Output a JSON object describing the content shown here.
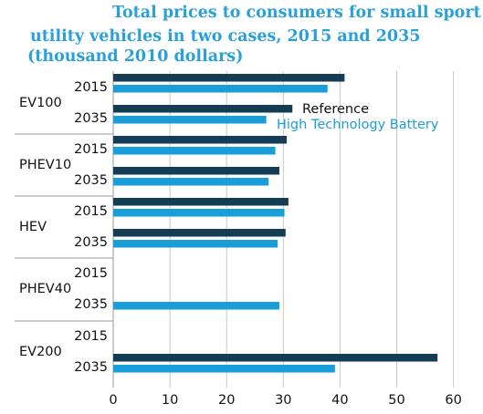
{
  "chart_data": {
    "type": "bar",
    "orientation": "horizontal",
    "title": "Total prices to consumers for small sport utility vehicles in two cases, 2015 and 2035 (thousand 2010 dollars)",
    "title_lines": [
      "Total prices to consumers for small sport",
      "utility vehicles in two cases, 2015 and 2035",
      "(thousand 2010 dollars)"
    ],
    "xlabel": "",
    "ylabel": "",
    "xlim": [
      0,
      60
    ],
    "xticks": [
      "0",
      "10",
      "20",
      "30",
      "40",
      "50",
      "60"
    ],
    "grid": true,
    "legend_position": "upper-right",
    "groups": [
      {
        "name": "EV100",
        "years": [
          {
            "year": "2015",
            "values": {
              "Reference": 40.8,
              "High Technology Battery": 37.8
            }
          },
          {
            "year": "2035",
            "values": {
              "Reference": 31.6,
              "High Technology Battery": 27.0
            }
          }
        ]
      },
      {
        "name": "PHEV10",
        "years": [
          {
            "year": "2015",
            "values": {
              "Reference": 30.6,
              "High Technology Battery": 28.6
            }
          },
          {
            "year": "2035",
            "values": {
              "Reference": 29.3,
              "High Technology Battery": 27.4
            }
          }
        ]
      },
      {
        "name": "HEV",
        "years": [
          {
            "year": "2015",
            "values": {
              "Reference": 30.9,
              "High Technology Battery": 30.2
            }
          },
          {
            "year": "2035",
            "values": {
              "Reference": 30.4,
              "High Technology Battery": 29.0
            }
          }
        ]
      },
      {
        "name": "PHEV40",
        "years": [
          {
            "year": "2015",
            "values": {
              "Reference": null,
              "High Technology Battery": null
            }
          },
          {
            "year": "2035",
            "values": {
              "Reference": null,
              "High Technology Battery": 29.3
            }
          }
        ]
      },
      {
        "name": "EV200",
        "years": [
          {
            "year": "2015",
            "values": {
              "Reference": null,
              "High Technology Battery": null
            }
          },
          {
            "year": "2035",
            "values": {
              "Reference": 57.2,
              "High Technology Battery": 39.1
            }
          }
        ]
      }
    ],
    "series": [
      {
        "name": "Reference",
        "color": "#143d55"
      },
      {
        "name": "High Technology Battery",
        "color": "#1a9ed9"
      }
    ]
  }
}
